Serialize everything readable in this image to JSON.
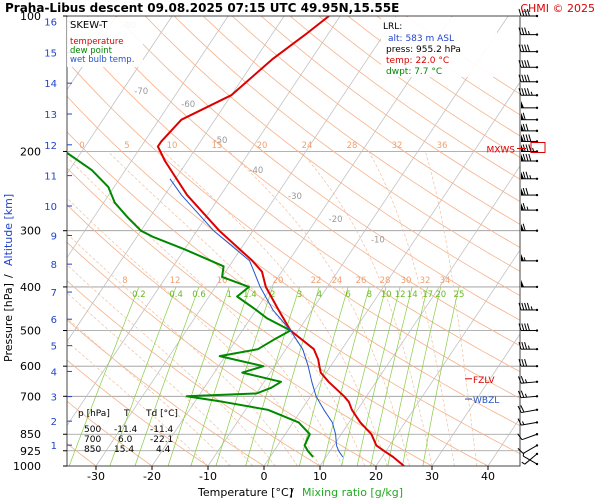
{
  "header": {
    "title": "Praha-Libus  descent  09.08.2025 07:15 UTC  49.95N,15.55E",
    "credit": "CHMI © 2025"
  },
  "legend": {
    "title": "SKEW-T",
    "items": [
      {
        "label": "temperature",
        "color": "#dd0000"
      },
      {
        "label": "dew point",
        "color": "#008800"
      },
      {
        "label": "wet bulb temp.",
        "color": "#2255cc"
      }
    ]
  },
  "lrl": {
    "title": "LRL:",
    "lines": [
      {
        "text": "alt: 583 m ASL",
        "color": "#2244cc"
      },
      {
        "text": "press: 955.2 hPa",
        "color": "#000000"
      },
      {
        "text": "temp: 22.0 °C",
        "color": "#dd0000"
      },
      {
        "text": "dwpt: 7.7 °C",
        "color": "#008800"
      }
    ]
  },
  "table": {
    "headers": [
      "p [hPa]",
      "T",
      "Td [°C]"
    ],
    "rows": [
      [
        "500",
        "-11.4",
        "-11.4"
      ],
      [
        "700",
        "6.0",
        "-22.1"
      ],
      [
        "850",
        "15.4",
        "4.4"
      ]
    ]
  },
  "markers": [
    {
      "label": "MXWS",
      "p": 197,
      "color": "#dd0000"
    },
    {
      "label": "FZLV",
      "p": 640,
      "color": "#dd0000"
    },
    {
      "label": "WBZL",
      "p": 710,
      "color": "#2255cc"
    }
  ],
  "chart_data": {
    "type": "line",
    "title": "Praha-Libus  descent  09.08.2025 07:15 UTC  49.95N,15.55E",
    "xlabel": "Temperature [°C]",
    "xlabel_extra": "Mixing ratio [g/kg]",
    "ylabel": "Pressure [hPa]",
    "ylabel_extra": "Altitude [km]",
    "x_ticks": [
      -30,
      -20,
      -10,
      0,
      10,
      20,
      30,
      40
    ],
    "p_ticks": [
      100,
      200,
      300,
      400,
      500,
      600,
      700,
      850,
      925,
      1000
    ],
    "km_ticks": [
      1,
      2,
      3,
      4,
      5,
      6,
      7,
      8,
      9,
      10,
      11,
      12,
      13,
      14,
      15,
      16
    ],
    "ylim": [
      1000,
      100
    ],
    "skewed_isotherm_labels": [
      -80,
      -70,
      -60,
      -50,
      -40,
      -30,
      -20,
      -10
    ],
    "dry_adiabat_labels": [
      0,
      5,
      10,
      15,
      20,
      24,
      28,
      32,
      36
    ],
    "moist_adiabat_labels": [
      8,
      12,
      16,
      20,
      22,
      24,
      26,
      28,
      30,
      32,
      34
    ],
    "mixing_ratio_labels": [
      "0.2",
      "0.4",
      "0.6",
      "1",
      "1.4",
      "2",
      "3",
      "4",
      "6",
      "8",
      "10",
      "12",
      "14",
      "17",
      "20",
      "25"
    ],
    "series": [
      {
        "name": "temperature",
        "color": "#dd0000",
        "points": [
          [
            1000,
            25.0
          ],
          [
            955,
            22.0
          ],
          [
            925,
            19.6
          ],
          [
            900,
            17.6
          ],
          [
            850,
            15.4
          ],
          [
            800,
            12.0
          ],
          [
            750,
            9.0
          ],
          [
            720,
            7.5
          ],
          [
            700,
            6.0
          ],
          [
            650,
            1.5
          ],
          [
            620,
            -1.0
          ],
          [
            600,
            -2.0
          ],
          [
            580,
            -3.0
          ],
          [
            550,
            -5.0
          ],
          [
            500,
            -11.4
          ],
          [
            450,
            -16.0
          ],
          [
            400,
            -21.0
          ],
          [
            370,
            -23.5
          ],
          [
            350,
            -26.5
          ],
          [
            300,
            -36.0
          ],
          [
            250,
            -46.0
          ],
          [
            210,
            -54.0
          ],
          [
            195,
            -57.0
          ],
          [
            190,
            -57.0
          ],
          [
            170,
            -56.0
          ],
          [
            150,
            -50.0
          ],
          [
            125,
            -47.0
          ],
          [
            110,
            -44.0
          ],
          [
            100,
            -42.0
          ]
        ]
      },
      {
        "name": "dew point",
        "color": "#008800",
        "points": [
          [
            955,
            7.7
          ],
          [
            925,
            6.0
          ],
          [
            900,
            4.8
          ],
          [
            850,
            4.4
          ],
          [
            800,
            1.0
          ],
          [
            750,
            -6.0
          ],
          [
            720,
            -15.0
          ],
          [
            700,
            -22.1
          ],
          [
            690,
            -10.0
          ],
          [
            670,
            -8.0
          ],
          [
            650,
            -7.0
          ],
          [
            620,
            -15.0
          ],
          [
            600,
            -12.0
          ],
          [
            570,
            -21.0
          ],
          [
            550,
            -15.0
          ],
          [
            520,
            -13.0
          ],
          [
            500,
            -11.4
          ],
          [
            470,
            -17.0
          ],
          [
            450,
            -20.0
          ],
          [
            420,
            -25.0
          ],
          [
            400,
            -24.0
          ],
          [
            380,
            -30.0
          ],
          [
            360,
            -31.0
          ],
          [
            330,
            -40.0
          ],
          [
            310,
            -47.0
          ],
          [
            300,
            -50.0
          ],
          [
            280,
            -54.0
          ],
          [
            260,
            -58.0
          ],
          [
            240,
            -61.0
          ],
          [
            220,
            -66.0
          ],
          [
            200,
            -73.0
          ],
          [
            185,
            -79.0
          ],
          [
            170,
            -82.0
          ],
          [
            150,
            -89.0
          ],
          [
            135,
            -93.0
          ],
          [
            120,
            -95.0
          ],
          [
            110,
            -95.0
          ],
          [
            100,
            -96.0
          ]
        ]
      },
      {
        "name": "wet bulb temp.",
        "color": "#2255cc",
        "points": [
          [
            955,
            13.0
          ],
          [
            925,
            11.5
          ],
          [
            900,
            10.5
          ],
          [
            850,
            9.0
          ],
          [
            800,
            7.0
          ],
          [
            750,
            4.0
          ],
          [
            700,
            1.0
          ],
          [
            650,
            -1.5
          ],
          [
            600,
            -4.0
          ],
          [
            550,
            -7.0
          ],
          [
            500,
            -11.4
          ],
          [
            450,
            -17.0
          ],
          [
            400,
            -22.0
          ],
          [
            350,
            -27.0
          ],
          [
            300,
            -37.0
          ],
          [
            250,
            -47.0
          ],
          [
            230,
            -51.0
          ]
        ]
      }
    ],
    "wind_barbs": [
      {
        "p": 990,
        "dir": 300,
        "kt": 5
      },
      {
        "p": 940,
        "dir": 230,
        "kt": 8
      },
      {
        "p": 900,
        "dir": 240,
        "kt": 10
      },
      {
        "p": 850,
        "dir": 250,
        "kt": 12
      },
      {
        "p": 800,
        "dir": 260,
        "kt": 15
      },
      {
        "p": 750,
        "dir": 260,
        "kt": 20
      },
      {
        "p": 700,
        "dir": 265,
        "kt": 25
      },
      {
        "p": 650,
        "dir": 265,
        "kt": 28
      },
      {
        "p": 600,
        "dir": 270,
        "kt": 30
      },
      {
        "p": 550,
        "dir": 270,
        "kt": 35
      },
      {
        "p": 500,
        "dir": 270,
        "kt": 40
      },
      {
        "p": 450,
        "dir": 270,
        "kt": 45
      },
      {
        "p": 400,
        "dir": 270,
        "kt": 50
      },
      {
        "p": 350,
        "dir": 270,
        "kt": 55
      },
      {
        "p": 300,
        "dir": 270,
        "kt": 60
      },
      {
        "p": 270,
        "dir": 270,
        "kt": 65
      },
      {
        "p": 250,
        "dir": 270,
        "kt": 70
      },
      {
        "p": 230,
        "dir": 270,
        "kt": 75
      },
      {
        "p": 210,
        "dir": 270,
        "kt": 80
      },
      {
        "p": 200,
        "dir": 270,
        "kt": 85
      },
      {
        "p": 190,
        "dir": 270,
        "kt": 80
      },
      {
        "p": 180,
        "dir": 270,
        "kt": 70
      },
      {
        "p": 170,
        "dir": 270,
        "kt": 60
      },
      {
        "p": 160,
        "dir": 270,
        "kt": 50
      },
      {
        "p": 150,
        "dir": 270,
        "kt": 45
      },
      {
        "p": 140,
        "dir": 270,
        "kt": 40
      },
      {
        "p": 130,
        "dir": 270,
        "kt": 40
      },
      {
        "p": 120,
        "dir": 270,
        "kt": 40
      },
      {
        "p": 110,
        "dir": 270,
        "kt": 35
      },
      {
        "p": 100,
        "dir": 270,
        "kt": 40
      }
    ]
  }
}
